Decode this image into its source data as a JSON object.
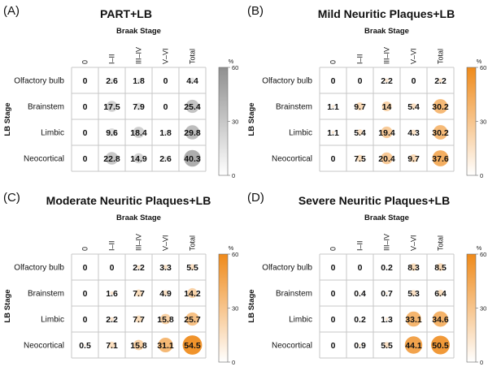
{
  "chart_data": [
    {
      "type": "heatmap",
      "panel_label": "(A)",
      "title": "PART+LB",
      "xlabel": "Braak Stage",
      "ylabel": "LB Stage",
      "categories": [
        "0",
        "I–II",
        "III–IV",
        "V–VI",
        "Total"
      ],
      "rows": [
        "Olfactory bulb",
        "Brainstem",
        "Limbic",
        "Neocortical"
      ],
      "values": [
        [
          0,
          2.6,
          1.8,
          0,
          4.4
        ],
        [
          0,
          17.5,
          7.9,
          0,
          25.4
        ],
        [
          0,
          9.6,
          18.4,
          1.8,
          29.8
        ],
        [
          0,
          22.8,
          14.9,
          2.6,
          40.3
        ]
      ],
      "colorbar": {
        "unit": "%",
        "ticks": [
          "60",
          "30",
          "0"
        ],
        "range": [
          0,
          60
        ],
        "color": "#8f8f8f"
      }
    },
    {
      "type": "heatmap",
      "panel_label": "(B)",
      "title": "Mild Neuritic Plaques+LB",
      "xlabel": "Braak Stage",
      "ylabel": "LB Stage",
      "categories": [
        "0",
        "I–II",
        "III–IV",
        "V–VI",
        "Total"
      ],
      "rows": [
        "Olfactory bulb",
        "Brainstem",
        "Limbic",
        "Neocortical"
      ],
      "values": [
        [
          0,
          0,
          2.2,
          0,
          2.2
        ],
        [
          1.1,
          9.7,
          14,
          5.4,
          30.2
        ],
        [
          1.1,
          5.4,
          19.4,
          4.3,
          30.2
        ],
        [
          0,
          7.5,
          20.4,
          9.7,
          37.6
        ]
      ],
      "colorbar": {
        "unit": "%",
        "ticks": [
          "60",
          "30",
          "0"
        ],
        "range": [
          0,
          60
        ],
        "color": "#ef8a1a"
      }
    },
    {
      "type": "heatmap",
      "panel_label": "(C)",
      "title": "Moderate Neuritic Plaques+LB",
      "xlabel": "Braak Stage",
      "ylabel": "LB Stage",
      "categories": [
        "0",
        "I–II",
        "III–IV",
        "V–VI",
        "Total"
      ],
      "rows": [
        "Olfactory bulb",
        "Brainstem",
        "Limbic",
        "Neocortical"
      ],
      "values": [
        [
          0,
          0,
          2.2,
          3.3,
          5.5
        ],
        [
          0,
          1.6,
          7.7,
          4.9,
          14.2
        ],
        [
          0,
          2.2,
          7.7,
          15.8,
          25.7
        ],
        [
          0.5,
          7.1,
          15.8,
          31.1,
          54.5
        ]
      ],
      "colorbar": {
        "unit": "%",
        "ticks": [
          "60",
          "30",
          "0"
        ],
        "range": [
          0,
          60
        ],
        "color": "#ef8a1a"
      }
    },
    {
      "type": "heatmap",
      "panel_label": "(D)",
      "title": "Severe Neuritic Plaques+LB",
      "xlabel": "Braak Stage",
      "ylabel": "LB Stage",
      "categories": [
        "0",
        "I–II",
        "III–IV",
        "V–VI",
        "Total"
      ],
      "rows": [
        "Olfactory bulb",
        "Brainstem",
        "Limbic",
        "Neocortical"
      ],
      "values": [
        [
          0,
          0,
          0.2,
          8.3,
          8.5
        ],
        [
          0,
          0.4,
          0.7,
          5.3,
          6.4
        ],
        [
          0,
          0.2,
          1.3,
          33.1,
          34.6
        ],
        [
          0,
          0.9,
          5.5,
          44.1,
          50.5
        ]
      ],
      "colorbar": {
        "unit": "%",
        "ticks": [
          "60",
          "30",
          "0"
        ],
        "range": [
          0,
          60
        ],
        "color": "#ef8a1a"
      }
    }
  ]
}
